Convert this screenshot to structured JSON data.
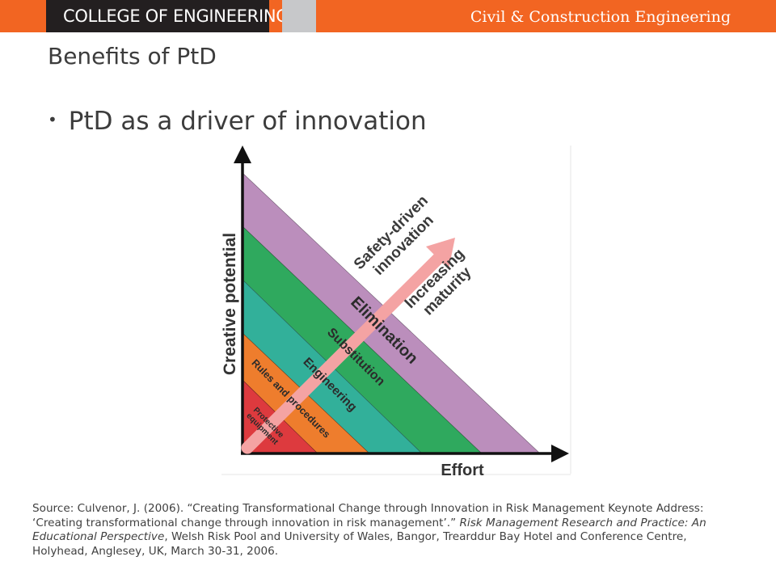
{
  "header": {
    "college": "COLLEGE OF ENGINEERING",
    "department": "Civil & Construction Engineering"
  },
  "slide": {
    "title": "Benefits of PtD",
    "bullet": "PtD as a driver of innovation",
    "bullet_marker": "•"
  },
  "diagram": {
    "y_axis_label": "Creative potential",
    "x_axis_label": "Effort",
    "bands": [
      {
        "label": "Elimination",
        "color": "#bb8ebc"
      },
      {
        "label": "Substitution",
        "color": "#2fa95e"
      },
      {
        "label": "Engineering",
        "color": "#32b09a"
      },
      {
        "label": "Rules and procedures",
        "color": "#ee7d2d"
      },
      {
        "label_lines": [
          "Protective",
          "equipment"
        ],
        "color": "#dd3a3e"
      }
    ],
    "arrow_label_lines": [
      "Safety-driven",
      "innovation"
    ],
    "arrow_label_2_lines": [
      "Increasing",
      "maturity"
    ],
    "arrow_color": "#f4a3a3"
  },
  "source": {
    "part1": "Source: Culvenor, J. (2006). “Creating Transformational Change through Innovation in Risk Management Keynote Address: ‘Creating transformational change through innovation in risk management’.” ",
    "journal": "Risk Management Research and Practice: An Educational Perspective",
    "part2": ", Welsh Risk Pool and University of Wales, Bangor, Trearddur Bay Hotel and Conference Centre, Holyhead, Anglesey, UK, March 30-31, 2006."
  }
}
